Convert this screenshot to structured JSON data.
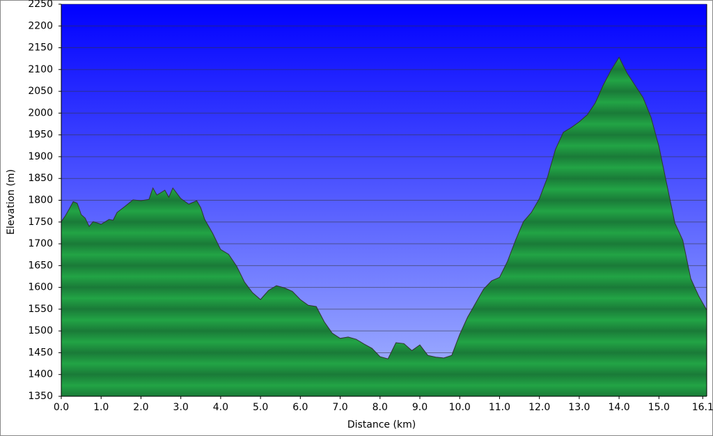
{
  "chart_data": {
    "type": "area",
    "x_label": "Distance (km)",
    "y_label": "Elevation (m)",
    "x": [
      0,
      0.1,
      0.2,
      0.3,
      0.4,
      0.5,
      0.6,
      0.7,
      0.8,
      1.0,
      1.2,
      1.3,
      1.4,
      1.6,
      1.8,
      2.0,
      2.2,
      2.3,
      2.4,
      2.6,
      2.7,
      2.8,
      3.0,
      3.2,
      3.4,
      3.5,
      3.6,
      3.8,
      4.0,
      4.2,
      4.4,
      4.6,
      4.8,
      5.0,
      5.2,
      5.4,
      5.6,
      5.8,
      6.0,
      6.2,
      6.4,
      6.6,
      6.8,
      7.0,
      7.2,
      7.4,
      7.6,
      7.8,
      8.0,
      8.2,
      8.4,
      8.6,
      8.8,
      9.0,
      9.2,
      9.4,
      9.6,
      9.8,
      10.0,
      10.2,
      10.4,
      10.6,
      10.8,
      11.0,
      11.2,
      11.4,
      11.6,
      11.8,
      12.0,
      12.2,
      12.4,
      12.6,
      12.8,
      13.0,
      13.2,
      13.4,
      13.6,
      13.8,
      14.0,
      14.2,
      14.4,
      14.6,
      14.8,
      15.0,
      15.2,
      15.4,
      15.6,
      15.8,
      16.0,
      16.2
    ],
    "values": [
      1751,
      1764,
      1780,
      1797,
      1793,
      1767,
      1759,
      1740,
      1751,
      1745,
      1756,
      1754,
      1772,
      1786,
      1801,
      1799,
      1802,
      1828,
      1812,
      1823,
      1807,
      1828,
      1804,
      1791,
      1799,
      1783,
      1756,
      1724,
      1687,
      1676,
      1649,
      1612,
      1588,
      1572,
      1593,
      1604,
      1599,
      1591,
      1572,
      1559,
      1556,
      1521,
      1495,
      1483,
      1486,
      1481,
      1470,
      1460,
      1441,
      1436,
      1473,
      1471,
      1455,
      1468,
      1444,
      1440,
      1438,
      1444,
      1492,
      1532,
      1564,
      1596,
      1615,
      1623,
      1660,
      1708,
      1751,
      1772,
      1804,
      1852,
      1916,
      1956,
      1967,
      1980,
      1996,
      2023,
      2064,
      2099,
      2128,
      2092,
      2064,
      2036,
      1991,
      1924,
      1836,
      1748,
      1708,
      1620,
      1580,
      1548
    ],
    "xlim": [
      0,
      16.2
    ],
    "xticks": [
      {
        "value": 0,
        "label": "0.0"
      },
      {
        "value": 1,
        "label": "1.0"
      },
      {
        "value": 2,
        "label": "2.0"
      },
      {
        "value": 3,
        "label": "3.0"
      },
      {
        "value": 4,
        "label": "4.0"
      },
      {
        "value": 5,
        "label": "5.0"
      },
      {
        "value": 6,
        "label": "6.0"
      },
      {
        "value": 7,
        "label": "7.0"
      },
      {
        "value": 8,
        "label": "8.0"
      },
      {
        "value": 9,
        "label": "9.0"
      },
      {
        "value": 10,
        "label": "10.0"
      },
      {
        "value": 11,
        "label": "11.0"
      },
      {
        "value": 12,
        "label": "12.0"
      },
      {
        "value": 13,
        "label": "13.0"
      },
      {
        "value": 14,
        "label": "14.0"
      },
      {
        "value": 15,
        "label": "15.0"
      },
      16.1
    ],
    "ylim": [
      1350,
      2250
    ],
    "yticks": [
      1350,
      1400,
      1450,
      1500,
      1550,
      1600,
      1650,
      1700,
      1750,
      1800,
      1850,
      1900,
      1950,
      2000,
      2050,
      2100,
      2150,
      2200,
      2250
    ],
    "grid": true,
    "color": "#22a445"
  }
}
